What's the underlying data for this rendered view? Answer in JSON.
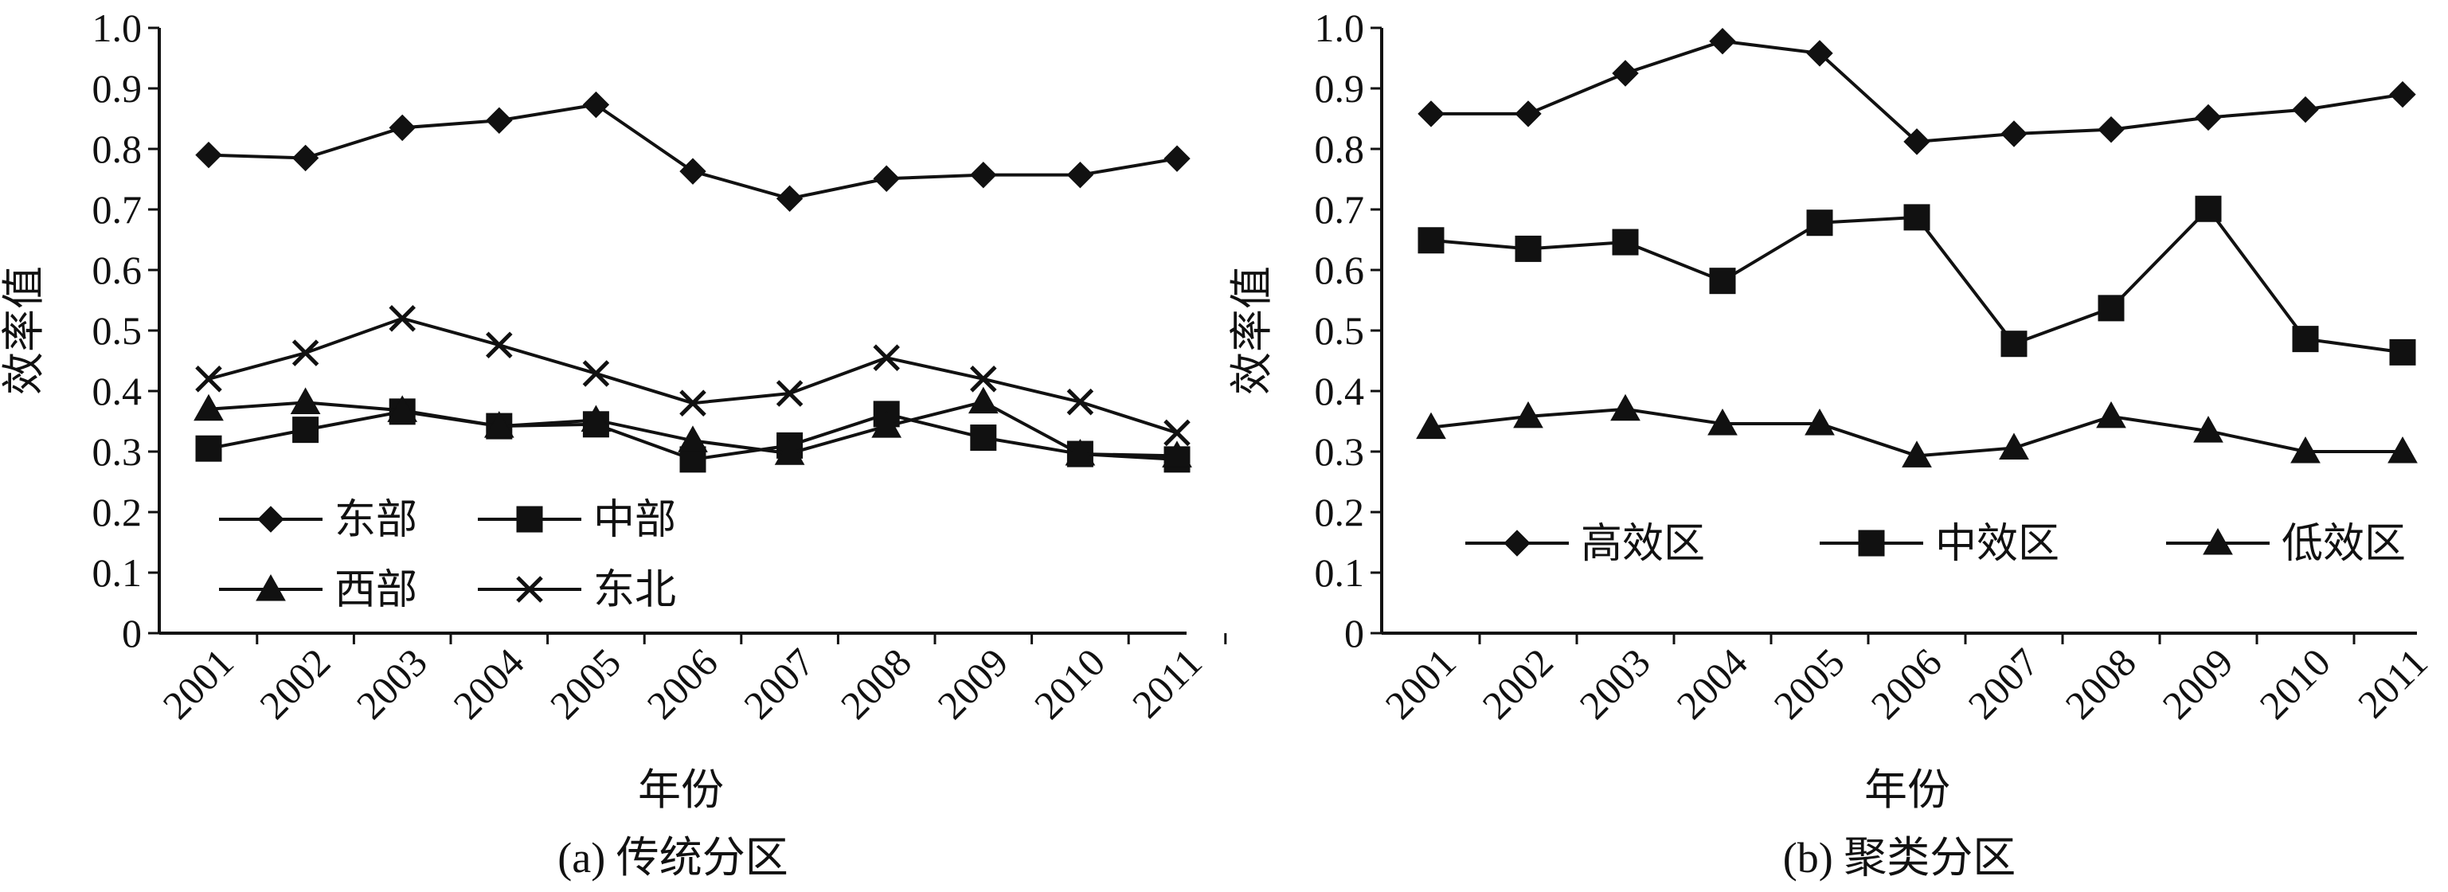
{
  "chart_data": [
    {
      "type": "line",
      "caption": "(a) 传统分区",
      "xlabel": "年份",
      "ylabel": "效率值",
      "x": [
        "2001",
        "2002",
        "2003",
        "2004",
        "2005",
        "2006",
        "2007",
        "2008",
        "2009",
        "2010",
        "2011"
      ],
      "ylim": [
        0,
        1.0
      ],
      "yticks": [
        "0",
        "0.1",
        "0.2",
        "0.3",
        "0.4",
        "0.5",
        "0.6",
        "0.7",
        "0.8",
        "0.9",
        "1.0"
      ],
      "grid": false,
      "legend_position": "bottom-left",
      "series": [
        {
          "name": "东部",
          "marker": "diamond",
          "values": [
            0.79,
            0.785,
            0.835,
            0.847,
            0.873,
            0.763,
            0.718,
            0.751,
            0.757,
            0.757,
            0.784
          ]
        },
        {
          "name": "中部",
          "marker": "square",
          "values": [
            0.305,
            0.336,
            0.366,
            0.342,
            0.345,
            0.287,
            0.31,
            0.362,
            0.323,
            0.296,
            0.287
          ]
        },
        {
          "name": "西部",
          "marker": "triangle",
          "values": [
            0.37,
            0.381,
            0.368,
            0.342,
            0.352,
            0.318,
            0.297,
            0.342,
            0.382,
            0.296,
            0.293
          ]
        },
        {
          "name": "东北",
          "marker": "x",
          "values": [
            0.42,
            0.463,
            0.52,
            0.476,
            0.429,
            0.38,
            0.396,
            0.455,
            0.42,
            0.382,
            0.331
          ]
        }
      ]
    },
    {
      "type": "line",
      "caption": "(b) 聚类分区",
      "xlabel": "年份",
      "ylabel": "效率值",
      "x": [
        "2001",
        "2002",
        "2003",
        "2004",
        "2005",
        "2006",
        "2007",
        "2008",
        "2009",
        "2010",
        "2011"
      ],
      "ylim": [
        0,
        1.0
      ],
      "yticks": [
        "0",
        "0.1",
        "0.2",
        "0.3",
        "0.4",
        "0.5",
        "0.6",
        "0.7",
        "0.8",
        "0.9",
        "1.0"
      ],
      "grid": false,
      "legend_position": "bottom",
      "series": [
        {
          "name": "高效区",
          "marker": "diamond",
          "values": [
            0.858,
            0.858,
            0.925,
            0.978,
            0.958,
            0.812,
            0.825,
            0.832,
            0.852,
            0.865,
            0.89
          ]
        },
        {
          "name": "中效区",
          "marker": "square",
          "values": [
            0.649,
            0.635,
            0.646,
            0.582,
            0.678,
            0.687,
            0.478,
            0.537,
            0.701,
            0.486,
            0.464
          ]
        },
        {
          "name": "低效区",
          "marker": "triangle",
          "values": [
            0.34,
            0.358,
            0.37,
            0.346,
            0.346,
            0.293,
            0.306,
            0.358,
            0.334,
            0.3,
            0.3
          ]
        }
      ]
    }
  ]
}
